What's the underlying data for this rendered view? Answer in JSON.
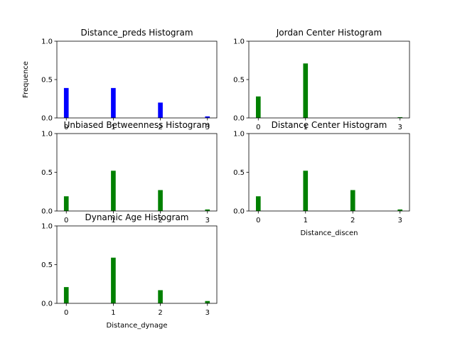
{
  "chart_data": [
    {
      "type": "bar",
      "title": "Distance_preds Histogram",
      "xlabel": "",
      "ylabel": "Frequence",
      "x": [
        0,
        1,
        2,
        3
      ],
      "values": [
        0.39,
        0.39,
        0.2,
        0.02
      ],
      "xticks": [
        "0",
        "1",
        "2",
        "3"
      ],
      "yticks": [
        "0.0",
        "0.5",
        "1.0"
      ],
      "xlim": [
        -0.2,
        3.2
      ],
      "ylim": [
        0,
        1
      ],
      "color": "#0000ff",
      "grid": false
    },
    {
      "type": "bar",
      "title": "Jordan Center Histogram",
      "xlabel": "",
      "ylabel": "",
      "x": [
        0,
        1,
        2,
        3
      ],
      "values": [
        0.28,
        0.71,
        0.0,
        0.01
      ],
      "xticks": [
        "0",
        "1",
        "3"
      ],
      "yticks": [
        "0.0",
        "0.5",
        "1.0"
      ],
      "xlim": [
        -0.2,
        3.2
      ],
      "ylim": [
        0,
        1
      ],
      "color": "#008000",
      "grid": false
    },
    {
      "type": "bar",
      "title": "Unbiased Betweenness Histogram",
      "xlabel": "",
      "ylabel": "",
      "x": [
        0,
        1,
        2,
        3
      ],
      "values": [
        0.19,
        0.52,
        0.27,
        0.02
      ],
      "xticks": [
        "0",
        "1",
        "2",
        "3"
      ],
      "yticks": [
        "0.0",
        "0.5",
        "1.0"
      ],
      "xlim": [
        -0.2,
        3.2
      ],
      "ylim": [
        0,
        1
      ],
      "color": "#008000",
      "grid": false
    },
    {
      "type": "bar",
      "title": "Distance Center Histogram",
      "xlabel": "Distance_discen",
      "ylabel": "",
      "x": [
        0,
        1,
        2,
        3
      ],
      "values": [
        0.19,
        0.52,
        0.27,
        0.02
      ],
      "xticks": [
        "0",
        "1",
        "2",
        "3"
      ],
      "yticks": [
        "0.0",
        "0.5",
        "1.0"
      ],
      "xlim": [
        -0.2,
        3.2
      ],
      "ylim": [
        0,
        1
      ],
      "color": "#008000",
      "grid": false
    },
    {
      "type": "bar",
      "title": "Dynamic Age Histogram",
      "xlabel": "Distance_dynage",
      "ylabel": "",
      "x": [
        0,
        1,
        2,
        3
      ],
      "values": [
        0.21,
        0.59,
        0.17,
        0.03
      ],
      "xticks": [
        "0",
        "1",
        "2",
        "3"
      ],
      "yticks": [
        "0.0",
        "0.5",
        "1.0"
      ],
      "xlim": [
        -0.2,
        3.2
      ],
      "ylim": [
        0,
        1
      ],
      "color": "#008000",
      "grid": false
    }
  ]
}
